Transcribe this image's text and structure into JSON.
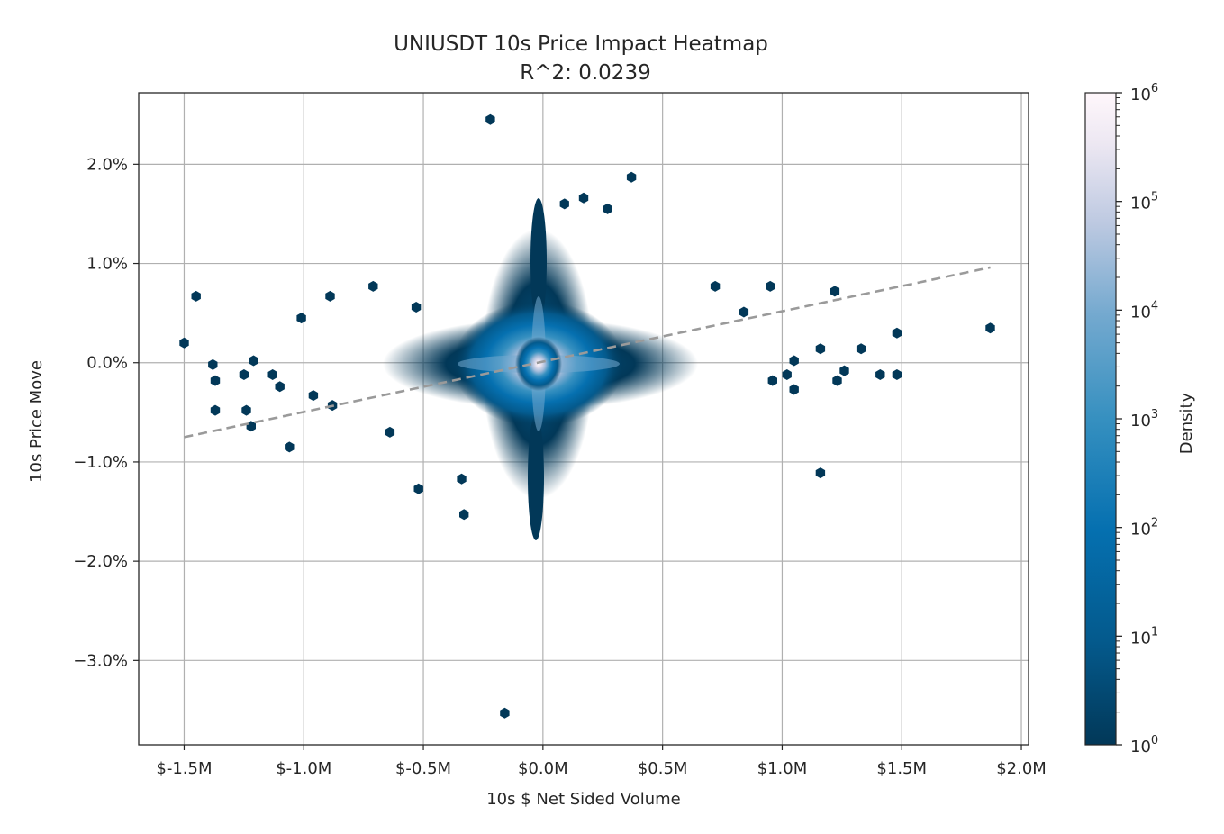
{
  "chart_data": {
    "type": "heatmap",
    "subtype": "hexbin",
    "title": "UNIUSDT 10s Price Impact Heatmap",
    "subtitle": "R^2: 0.0239",
    "xlabel": "10s $ Net Sided Volume",
    "ylabel": "10s Price Move",
    "x_unit": "$ millions",
    "y_unit": "percent",
    "xlim": [
      -1.69,
      2.03
    ],
    "ylim": [
      -3.85,
      2.72
    ],
    "x_ticks": [
      -1.5,
      -1.0,
      -0.5,
      0.0,
      0.5,
      1.0,
      1.5,
      2.0
    ],
    "x_tick_labels": [
      "$-1.5M",
      "$-1.0M",
      "$-0.5M",
      "$0.0M",
      "$0.5M",
      "$1.0M",
      "$1.5M",
      "$2.0M"
    ],
    "y_ticks": [
      2.0,
      1.0,
      0.0,
      -1.0,
      -2.0,
      -3.0
    ],
    "y_tick_labels": [
      "2.0%",
      "1.0%",
      "0.0%",
      "−1.0%",
      "−2.0%",
      "−3.0%"
    ],
    "grid": true,
    "colormap": "PuBu_r",
    "colors": {
      "dark": "#023858",
      "mid": "#0570b0",
      "light": "#74a9cf",
      "pale": "#d0d1e6",
      "white": "#fff7fb",
      "grid": "#b0b0b0",
      "fit_line": "#9a9a9a"
    },
    "colorbar": {
      "label": "Density",
      "scale": "log",
      "range": [
        1,
        1000000
      ],
      "tick_labels": [
        "10",
        "10",
        "10",
        "10",
        "10",
        "10",
        "10"
      ],
      "tick_exponents": [
        "0",
        "1",
        "2",
        "3",
        "4",
        "5",
        "6"
      ]
    },
    "regression_line": {
      "style": "dashed",
      "x": [
        -1.5,
        1.87
      ],
      "y": [
        -0.75,
        0.96
      ]
    },
    "outliers": [
      {
        "x": -1.5,
        "y": 0.2
      },
      {
        "x": -1.45,
        "y": 0.67
      },
      {
        "x": -1.38,
        "y": -0.02
      },
      {
        "x": -1.37,
        "y": -0.18
      },
      {
        "x": -1.37,
        "y": -0.48
      },
      {
        "x": -1.25,
        "y": -0.12
      },
      {
        "x": -1.24,
        "y": -0.48
      },
      {
        "x": -1.22,
        "y": -0.64
      },
      {
        "x": -1.21,
        "y": 0.02
      },
      {
        "x": -1.13,
        "y": -0.12
      },
      {
        "x": -1.1,
        "y": -0.24
      },
      {
        "x": -1.06,
        "y": -0.85
      },
      {
        "x": -1.01,
        "y": 0.45
      },
      {
        "x": -0.96,
        "y": -0.33
      },
      {
        "x": -0.89,
        "y": 0.67
      },
      {
        "x": -0.88,
        "y": -0.43
      },
      {
        "x": -0.71,
        "y": 0.77
      },
      {
        "x": -0.64,
        "y": -0.7
      },
      {
        "x": -0.53,
        "y": 0.56
      },
      {
        "x": -0.52,
        "y": -1.27
      },
      {
        "x": -0.34,
        "y": -1.17
      },
      {
        "x": -0.33,
        "y": -1.53
      },
      {
        "x": -0.22,
        "y": 2.45
      },
      {
        "x": -0.16,
        "y": -3.53
      },
      {
        "x": 0.09,
        "y": 1.6
      },
      {
        "x": 0.17,
        "y": 1.66
      },
      {
        "x": 0.27,
        "y": 1.55
      },
      {
        "x": 0.37,
        "y": 1.87
      },
      {
        "x": 0.72,
        "y": 0.77
      },
      {
        "x": 0.84,
        "y": 0.51
      },
      {
        "x": 0.95,
        "y": 0.77
      },
      {
        "x": 0.96,
        "y": -0.18
      },
      {
        "x": 1.02,
        "y": -0.12
      },
      {
        "x": 1.05,
        "y": -0.27
      },
      {
        "x": 1.05,
        "y": 0.02
      },
      {
        "x": 1.16,
        "y": -1.11
      },
      {
        "x": 1.16,
        "y": 0.14
      },
      {
        "x": 1.22,
        "y": 0.72
      },
      {
        "x": 1.23,
        "y": -0.18
      },
      {
        "x": 1.26,
        "y": -0.08
      },
      {
        "x": 1.33,
        "y": 0.14
      },
      {
        "x": 1.41,
        "y": -0.12
      },
      {
        "x": 1.48,
        "y": -0.12
      },
      {
        "x": 1.48,
        "y": 0.3
      },
      {
        "x": 1.87,
        "y": 0.35
      }
    ]
  }
}
